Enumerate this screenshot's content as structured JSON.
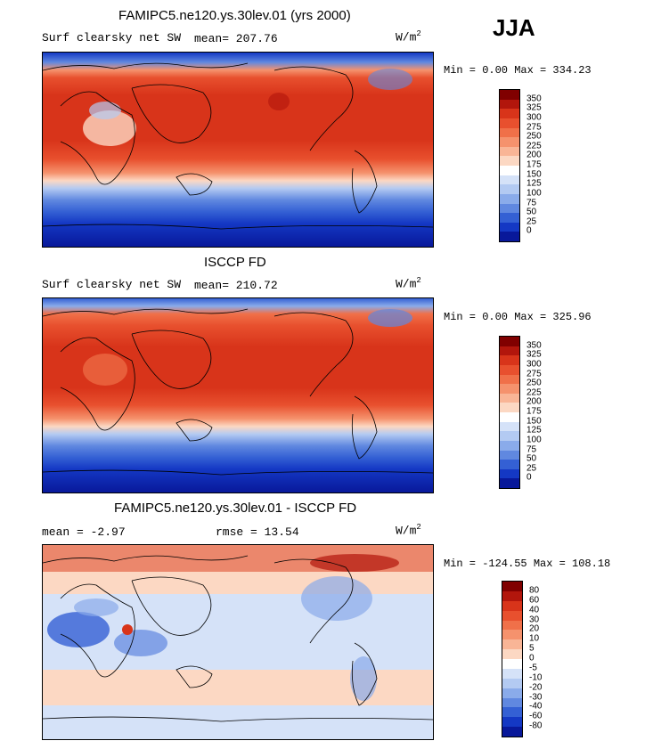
{
  "season": "JJA",
  "panels": [
    {
      "title": "FAMIPC5.ne120.ys.30lev.01 (yrs 2000)",
      "left_label": "Surf clearsky net SW",
      "mean_label": "mean= 207.76",
      "rmse_label": "",
      "units_base": "W/m",
      "units_exp": "2",
      "minmax": "Min =   0.00 Max = 334.23",
      "levels": [
        "350",
        "325",
        "300",
        "275",
        "250",
        "225",
        "200",
        "175",
        "150",
        "125",
        "100",
        "75",
        "50",
        "25",
        "0"
      ],
      "colors": [
        "#800000",
        "#b2160c",
        "#d8341a",
        "#e8502e",
        "#f07049",
        "#f5926d",
        "#f9b596",
        "#fcd8c3",
        "#ffffff",
        "#d5e2f8",
        "#b3caf2",
        "#8aabea",
        "#6088e0",
        "#3460d4",
        "#1438c4",
        "#08189a"
      ]
    },
    {
      "title": "ISCCP FD",
      "left_label": "Surf clearsky net SW",
      "mean_label": "mean= 210.72",
      "rmse_label": "",
      "units_base": "W/m",
      "units_exp": "2",
      "minmax": "Min =   0.00 Max = 325.96",
      "levels": [
        "350",
        "325",
        "300",
        "275",
        "250",
        "225",
        "200",
        "175",
        "150",
        "125",
        "100",
        "75",
        "50",
        "25",
        "0"
      ],
      "colors": [
        "#800000",
        "#b2160c",
        "#d8341a",
        "#e8502e",
        "#f07049",
        "#f5926d",
        "#f9b596",
        "#fcd8c3",
        "#ffffff",
        "#d5e2f8",
        "#b3caf2",
        "#8aabea",
        "#6088e0",
        "#3460d4",
        "#1438c4",
        "#08189a"
      ]
    },
    {
      "title": "FAMIPC5.ne120.ys.30lev.01 - ISCCP FD",
      "left_label": "mean =  -2.97",
      "mean_label": "",
      "rmse_label": "rmse =  13.54",
      "units_base": "W/m",
      "units_exp": "2",
      "minmax": "Min = -124.55 Max = 108.18",
      "levels": [
        "80",
        "60",
        "40",
        "30",
        "20",
        "10",
        "5",
        "0",
        "-5",
        "-10",
        "-20",
        "-30",
        "-40",
        "-60",
        "-80"
      ],
      "colors": [
        "#800000",
        "#b2160c",
        "#d8341a",
        "#e8502e",
        "#f07049",
        "#f5926d",
        "#f9b596",
        "#fcd8c3",
        "#ffffff",
        "#d5e2f8",
        "#b3caf2",
        "#8aabea",
        "#6088e0",
        "#3460d4",
        "#1438c4",
        "#08189a"
      ]
    }
  ]
}
